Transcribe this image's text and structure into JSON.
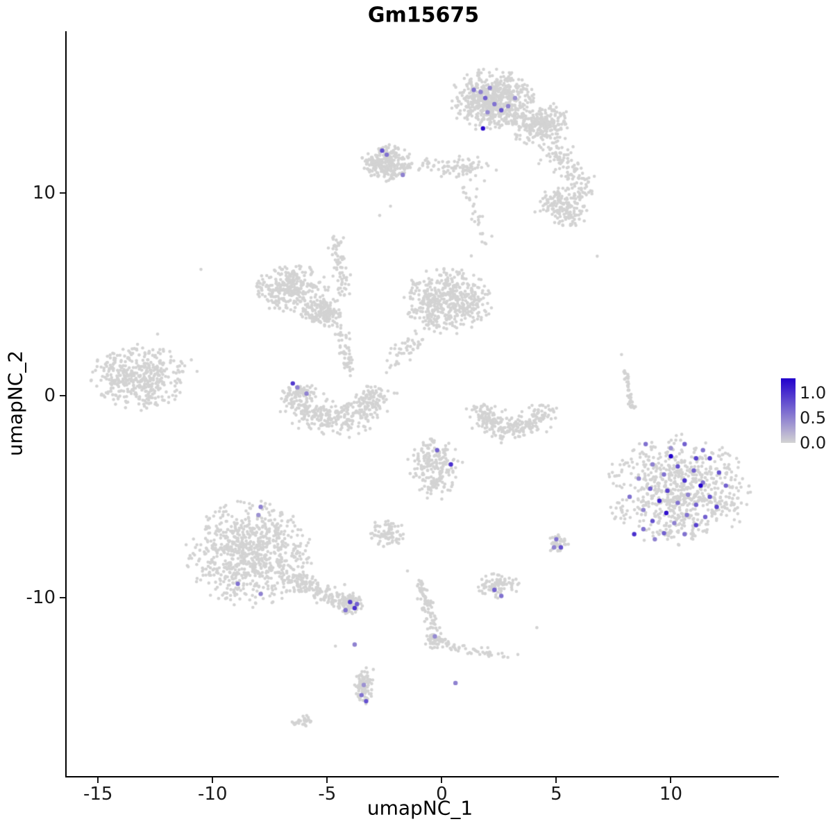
{
  "chart_data": {
    "type": "scatter",
    "title": "Gm15675",
    "xlabel": "umapNC_1",
    "ylabel": "umapNC_2",
    "xlim": [
      -16.4,
      14.5
    ],
    "ylim": [
      -18.8,
      18.0
    ],
    "x_ticks": [
      -15,
      -10,
      -5,
      0,
      5,
      10
    ],
    "y_ticks": [
      -10,
      0,
      10
    ],
    "grid": false,
    "legend_position": "right",
    "legend_labels": [
      {
        "value": 1.0,
        "text": "1.0"
      },
      {
        "value": 0.5,
        "text": "0.5"
      },
      {
        "value": 0.0,
        "text": "0.0"
      }
    ],
    "colors": {
      "low": "#D3D3D3",
      "high": "#2100CC",
      "vmax": 1.3
    },
    "point_style": {
      "radius": 2.3,
      "highlight_radius": 3.2
    },
    "clusters": [
      {
        "name": "top-main",
        "type": "blob",
        "cx": 2.2,
        "cy": 14.6,
        "rx": 1.7,
        "ry": 1.4,
        "n": 620
      },
      {
        "name": "top-right-lobe",
        "type": "blob",
        "cx": 4.3,
        "cy": 13.4,
        "rx": 1.3,
        "ry": 1.0,
        "n": 260
      },
      {
        "name": "top-trail",
        "type": "strand",
        "x1": 4.8,
        "y1": 12.2,
        "x2": 6.4,
        "y2": 10.2,
        "jitter": 0.55,
        "n": 110
      },
      {
        "name": "right-upper",
        "type": "blob",
        "cx": 5.3,
        "cy": 9.4,
        "rx": 1.2,
        "ry": 1.0,
        "n": 170
      },
      {
        "name": "upper-left",
        "type": "blob",
        "cx": -2.4,
        "cy": 11.5,
        "rx": 1.0,
        "ry": 0.85,
        "n": 240
      },
      {
        "name": "upper-left-strand",
        "type": "strand",
        "x1": -1.3,
        "y1": 11.4,
        "x2": 1.9,
        "y2": 11.2,
        "jitter": 0.45,
        "n": 90
      },
      {
        "name": "top-neck",
        "type": "strand",
        "x1": 1.0,
        "y1": 10.4,
        "x2": 1.8,
        "y2": 7.6,
        "jitter": 0.35,
        "n": 28
      },
      {
        "name": "midleft-blob",
        "type": "blob",
        "cx": -6.6,
        "cy": 5.3,
        "rx": 1.5,
        "ry": 1.1,
        "n": 300
      },
      {
        "name": "midleft-blob2",
        "type": "blob",
        "cx": -5.2,
        "cy": 4.1,
        "rx": 0.9,
        "ry": 0.7,
        "n": 160
      },
      {
        "name": "midleft-strand-up",
        "type": "strand",
        "x1": -4.6,
        "y1": 7.8,
        "x2": -4.3,
        "y2": 5.0,
        "jitter": 0.3,
        "n": 70
      },
      {
        "name": "midleft-strand-down",
        "type": "strand",
        "x1": -4.5,
        "y1": 3.5,
        "x2": -4.0,
        "y2": 1.2,
        "jitter": 0.3,
        "n": 55
      },
      {
        "name": "center",
        "type": "blob",
        "cx": 0.3,
        "cy": 4.7,
        "rx": 1.8,
        "ry": 1.5,
        "n": 480
      },
      {
        "name": "center-tail",
        "type": "strand",
        "x1": -0.6,
        "y1": 3.2,
        "x2": -2.4,
        "y2": 1.5,
        "jitter": 0.4,
        "n": 45
      },
      {
        "name": "far-left",
        "type": "blob",
        "cx": -13.2,
        "cy": 0.9,
        "rx": 1.9,
        "ry": 1.5,
        "n": 430
      },
      {
        "name": "crescent-left",
        "type": "arc",
        "cx": -4.7,
        "cy": 0.6,
        "r": 1.8,
        "a1": 185,
        "a2": 355,
        "thick": 0.75,
        "n": 430
      },
      {
        "name": "crescent-right",
        "type": "arc",
        "cx": 3.1,
        "cy": -0.2,
        "r": 1.5,
        "a1": 190,
        "a2": 350,
        "thick": 0.6,
        "n": 260
      },
      {
        "name": "right-strand",
        "type": "strand",
        "x1": 8.0,
        "y1": 1.3,
        "x2": 8.3,
        "y2": -0.7,
        "jitter": 0.12,
        "n": 40
      },
      {
        "name": "small-mid",
        "type": "blob",
        "cx": -0.3,
        "cy": -3.6,
        "rx": 1.1,
        "ry": 1.4,
        "n": 200
      },
      {
        "name": "right-big",
        "type": "blob",
        "cx": 10.3,
        "cy": -4.7,
        "rx": 2.9,
        "ry": 2.5,
        "n": 720
      },
      {
        "name": "small-left-mid",
        "type": "blob",
        "cx": -2.4,
        "cy": -6.8,
        "rx": 0.75,
        "ry": 0.6,
        "n": 80
      },
      {
        "name": "bottom-left",
        "type": "blob",
        "cx": -8.4,
        "cy": -7.8,
        "rx": 2.5,
        "ry": 2.4,
        "n": 780
      },
      {
        "name": "bottom-left-trail",
        "type": "strand",
        "x1": -6.6,
        "y1": -9.0,
        "x2": -4.2,
        "y2": -10.3,
        "jitter": 0.45,
        "n": 160
      },
      {
        "name": "trail-end",
        "type": "blob",
        "cx": -4.0,
        "cy": -10.3,
        "rx": 0.6,
        "ry": 0.55,
        "n": 90
      },
      {
        "name": "small-right",
        "type": "blob",
        "cx": 5.1,
        "cy": -7.3,
        "rx": 0.45,
        "ry": 0.45,
        "n": 40
      },
      {
        "name": "small-center-low",
        "type": "blob",
        "cx": 2.5,
        "cy": -9.4,
        "rx": 0.85,
        "ry": 0.55,
        "n": 90
      },
      {
        "name": "lower-strand",
        "type": "strand",
        "x1": -0.9,
        "y1": -9.2,
        "x2": -0.2,
        "y2": -12.2,
        "jitter": 0.25,
        "n": 90
      },
      {
        "name": "lower-strand-blob",
        "type": "blob",
        "cx": -0.3,
        "cy": -12.1,
        "rx": 0.45,
        "ry": 0.4,
        "n": 45
      },
      {
        "name": "lower-branch",
        "type": "strand",
        "x1": 0.1,
        "y1": -12.3,
        "x2": 2.9,
        "y2": -12.9,
        "jitter": 0.25,
        "n": 45
      },
      {
        "name": "bottom-small",
        "type": "blob",
        "cx": -3.4,
        "cy": -14.4,
        "rx": 0.4,
        "ry": 0.9,
        "n": 85
      },
      {
        "name": "bottom-tiny",
        "type": "blob",
        "cx": -6.1,
        "cy": -16.1,
        "rx": 0.45,
        "ry": 0.3,
        "n": 28
      },
      {
        "name": "scattered-singles",
        "type": "points",
        "pts": [
          [
            -10.5,
            6.2
          ],
          [
            6.8,
            6.8
          ],
          [
            -2.7,
            8.9
          ],
          [
            -2.2,
            9.3
          ],
          [
            -3.0,
            -13.6
          ],
          [
            7.9,
            2.0
          ],
          [
            -11.0,
            1.8
          ],
          [
            -10.7,
            1.2
          ],
          [
            6.6,
            10.9
          ],
          [
            1.2,
            6.9
          ],
          [
            -4.6,
            -12.4
          ],
          [
            3.3,
            -12.8
          ],
          [
            -1.5,
            -8.6
          ],
          [
            -12.4,
            3.0
          ],
          [
            4.2,
            -11.5
          ]
        ]
      }
    ],
    "expressing_points": [
      [
        1.4,
        15.1,
        0.6
      ],
      [
        1.7,
        15.0,
        0.5
      ],
      [
        1.9,
        14.7,
        0.7
      ],
      [
        2.1,
        15.2,
        0.5
      ],
      [
        2.3,
        14.4,
        0.6
      ],
      [
        2.6,
        14.1,
        0.8
      ],
      [
        2.9,
        14.3,
        0.5
      ],
      [
        1.8,
        13.2,
        1.25
      ],
      [
        3.2,
        14.7,
        0.4
      ],
      [
        2.0,
        14.0,
        0.45
      ],
      [
        -2.6,
        12.1,
        0.8
      ],
      [
        -2.4,
        11.9,
        0.6
      ],
      [
        -1.7,
        10.9,
        0.5
      ],
      [
        -6.5,
        0.6,
        0.95
      ],
      [
        -6.3,
        0.4,
        0.5
      ],
      [
        -5.9,
        0.1,
        0.5
      ],
      [
        -0.2,
        -2.7,
        0.7
      ],
      [
        0.4,
        -3.4,
        1.0
      ],
      [
        -7.9,
        -5.5,
        0.5
      ],
      [
        -8.9,
        -9.3,
        0.6
      ],
      [
        -7.9,
        -9.8,
        0.5
      ],
      [
        -4.0,
        -10.2,
        0.9
      ],
      [
        -3.8,
        -10.5,
        1.0
      ],
      [
        -4.2,
        -10.6,
        0.6
      ],
      [
        -3.7,
        -10.3,
        0.7
      ],
      [
        5.0,
        -7.1,
        0.6
      ],
      [
        5.2,
        -7.5,
        0.8
      ],
      [
        4.9,
        -7.5,
        0.5
      ],
      [
        2.3,
        -9.6,
        0.7
      ],
      [
        2.6,
        -9.9,
        0.6
      ],
      [
        -3.5,
        -14.8,
        0.6
      ],
      [
        -3.3,
        -15.1,
        0.8
      ],
      [
        -3.4,
        -14.3,
        0.4
      ],
      [
        0.6,
        -14.2,
        0.5
      ],
      [
        -3.8,
        -12.3,
        0.5
      ],
      [
        -0.3,
        -11.9,
        0.45
      ],
      [
        -8.0,
        -5.9,
        0.4
      ],
      [
        8.9,
        -2.4,
        0.6
      ],
      [
        10.6,
        -2.4,
        0.7
      ],
      [
        11.4,
        -2.7,
        0.6
      ],
      [
        10.0,
        -3.0,
        1.3
      ],
      [
        11.1,
        -3.1,
        0.9
      ],
      [
        11.7,
        -3.1,
        0.9
      ],
      [
        9.2,
        -3.4,
        0.5
      ],
      [
        10.3,
        -3.5,
        0.8
      ],
      [
        11.0,
        -3.7,
        0.7
      ],
      [
        9.7,
        -3.9,
        0.6
      ],
      [
        12.1,
        -3.8,
        0.8
      ],
      [
        8.6,
        -4.1,
        0.5
      ],
      [
        10.6,
        -4.2,
        1.0
      ],
      [
        11.4,
        -4.3,
        0.6
      ],
      [
        12.4,
        -4.45,
        0.7
      ],
      [
        9.1,
        -4.6,
        0.7
      ],
      [
        9.85,
        -4.7,
        0.9
      ],
      [
        10.75,
        -4.9,
        0.5
      ],
      [
        11.7,
        -5.0,
        0.8
      ],
      [
        8.2,
        -5.0,
        0.6
      ],
      [
        9.5,
        -5.2,
        1.1
      ],
      [
        10.3,
        -5.3,
        0.6
      ],
      [
        11.1,
        -5.4,
        0.7
      ],
      [
        12.0,
        -5.5,
        0.9
      ],
      [
        8.8,
        -5.65,
        0.5
      ],
      [
        9.8,
        -5.8,
        1.2
      ],
      [
        10.7,
        -5.9,
        0.6
      ],
      [
        11.5,
        -6.0,
        0.7
      ],
      [
        9.2,
        -6.2,
        0.8
      ],
      [
        10.15,
        -6.3,
        0.5
      ],
      [
        11.1,
        -6.4,
        0.9
      ],
      [
        8.8,
        -6.6,
        0.6
      ],
      [
        9.7,
        -6.8,
        0.7
      ],
      [
        10.6,
        -6.85,
        0.6
      ],
      [
        8.4,
        -6.85,
        1.0
      ],
      [
        9.3,
        -7.1,
        0.5
      ],
      [
        11.3,
        -4.45,
        1.3
      ],
      [
        10.0,
        -2.6,
        0.4
      ]
    ]
  }
}
